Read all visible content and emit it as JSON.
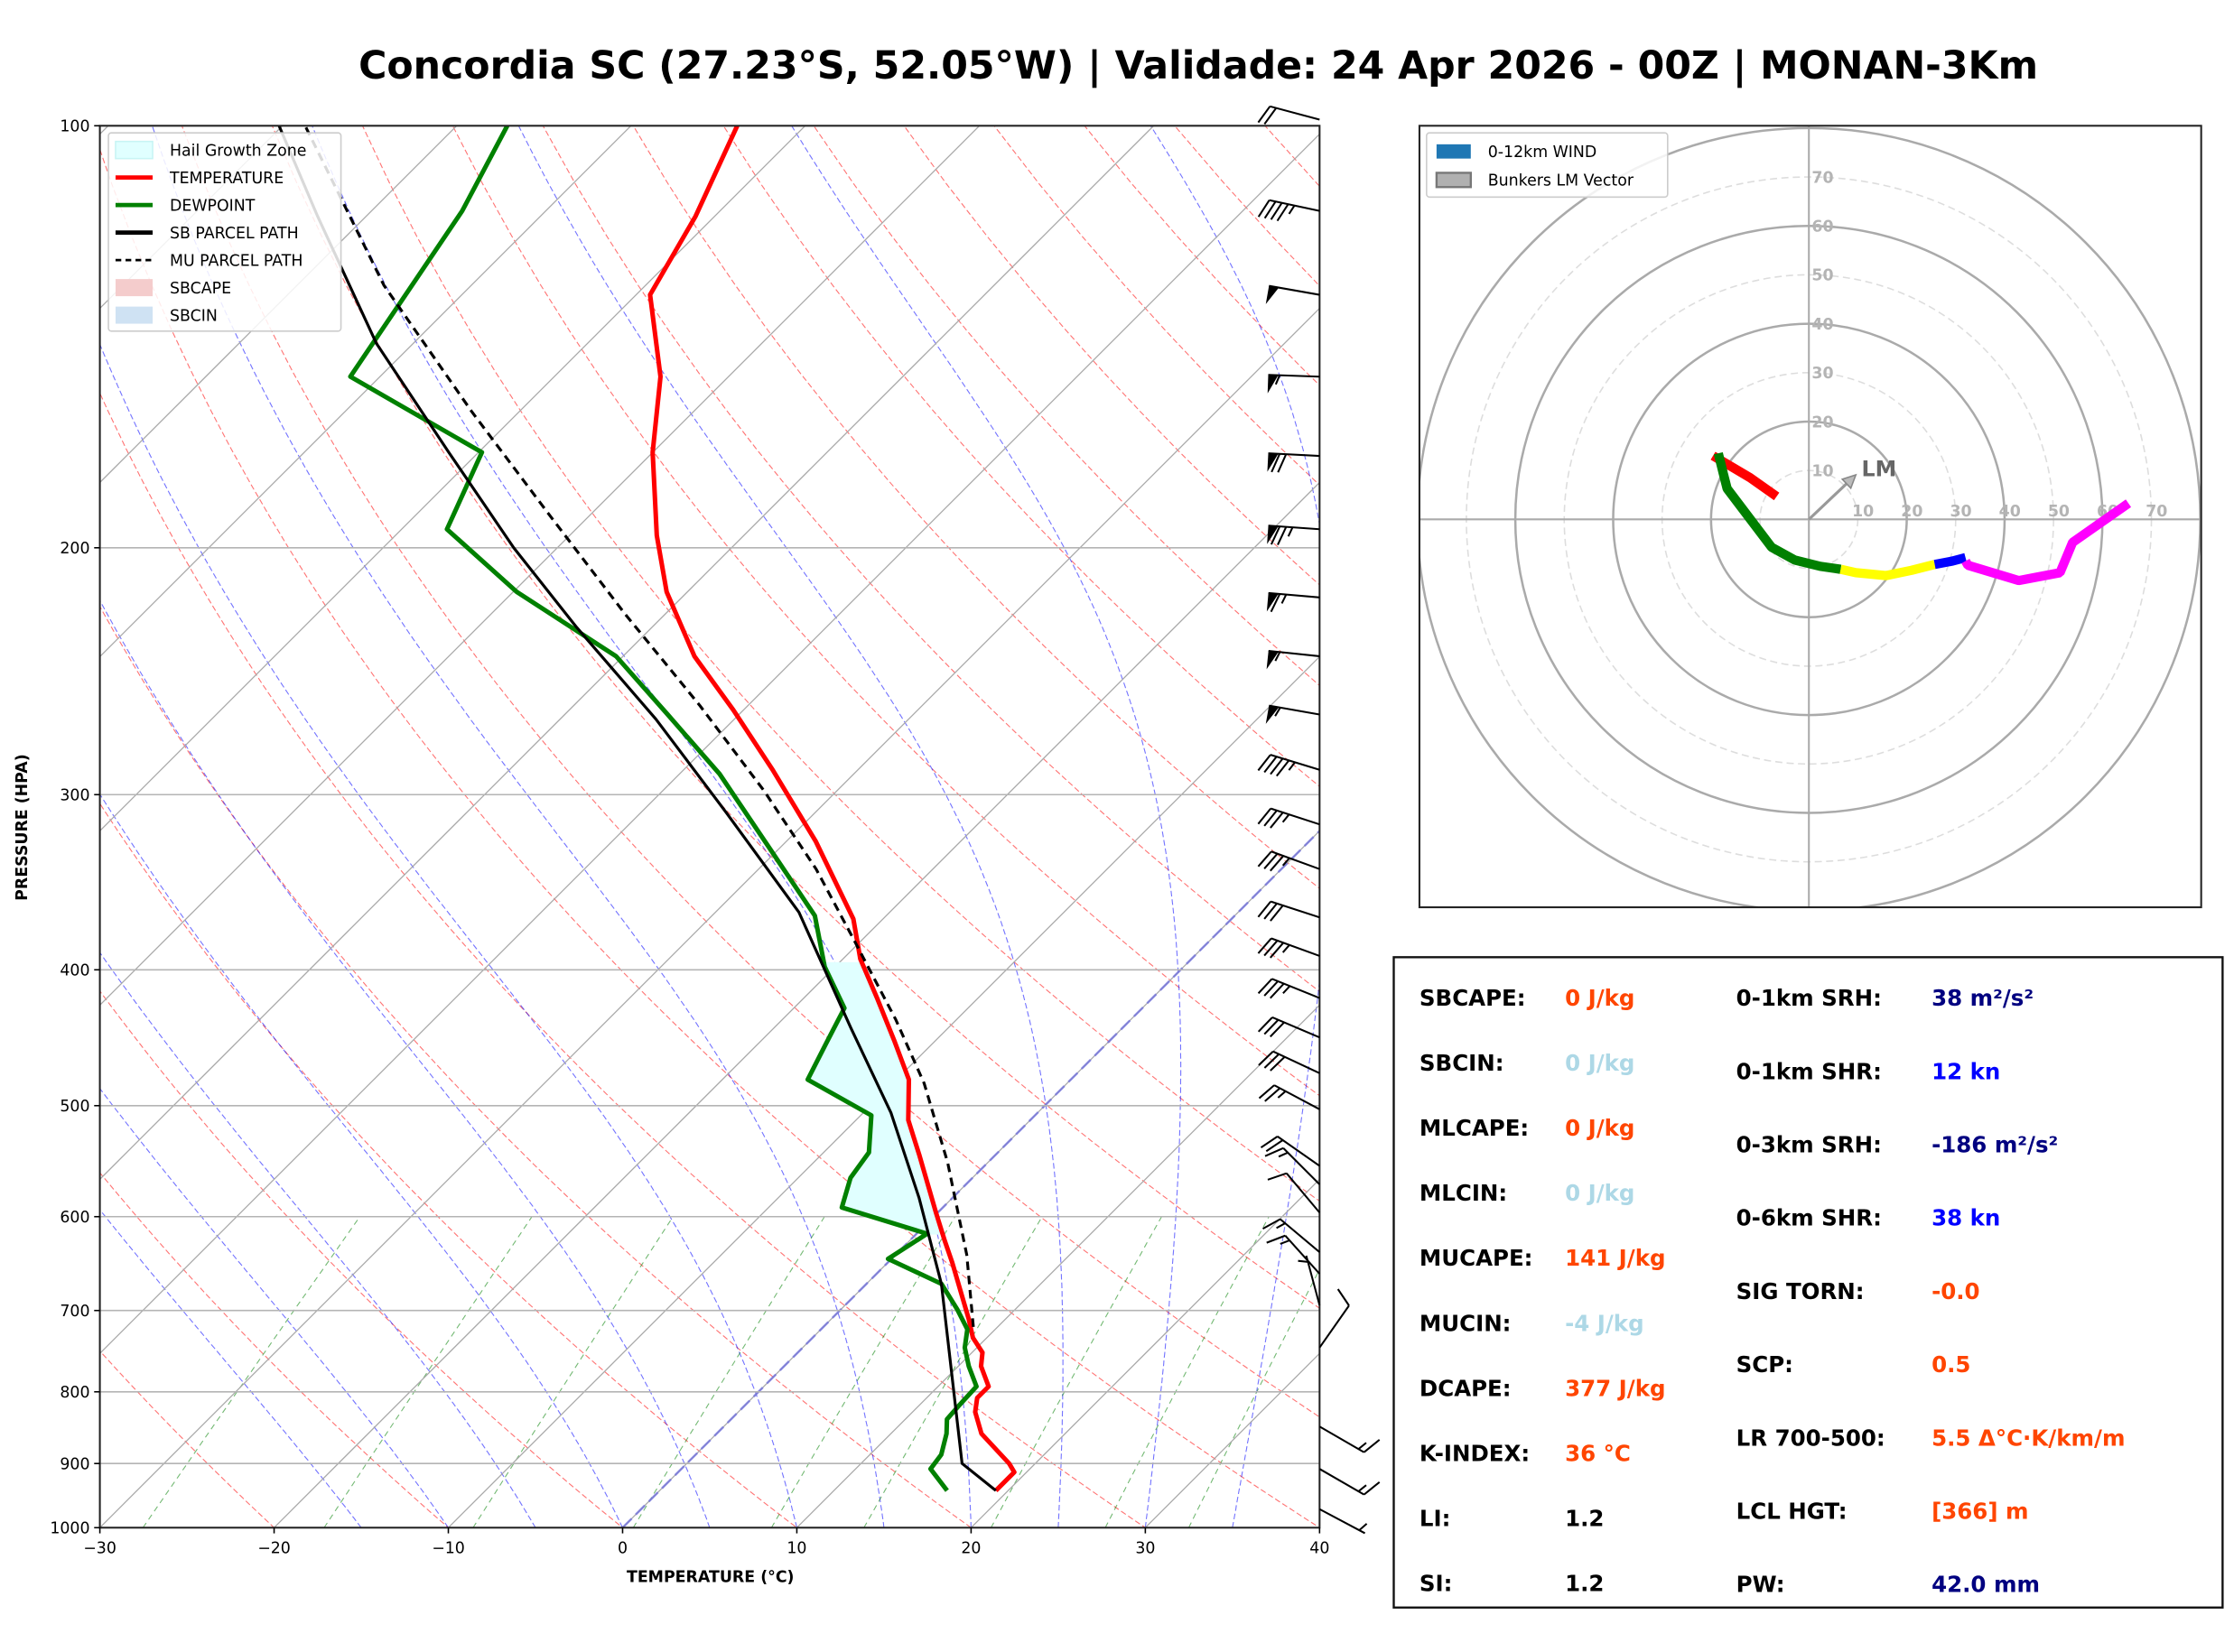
{
  "title": "Concordia SC (27.23°S, 52.05°W) | Validade: 24 Apr 2026 - 00Z | MONAN-3Km",
  "chart_data": [
    {
      "type": "line",
      "subtype": "skew-t log-p",
      "xlabel": "TEMPERATURE (°C)",
      "ylabel": "PRESSURE (HPA)",
      "xlim": [
        -30,
        40
      ],
      "ylim": [
        1000,
        100
      ],
      "y_scale": "log",
      "x_ticks": [
        "−30",
        "−20",
        "−10",
        "0",
        "10",
        "20",
        "30",
        "40"
      ],
      "x_tick_values": [
        -30,
        -20,
        -10,
        0,
        10,
        20,
        30,
        40
      ],
      "y_ticks": [
        "100",
        "200",
        "300",
        "400",
        "500",
        "600",
        "700",
        "800",
        "900",
        "1000"
      ],
      "y_tick_values": [
        100,
        200,
        300,
        400,
        500,
        600,
        700,
        800,
        900,
        1000
      ],
      "grid": true,
      "legend_placement": "top-left",
      "legend": [
        {
          "label": "Hail Growth Zone",
          "kind": "patch",
          "color": "#e0ffff"
        },
        {
          "label": "TEMPERATURE",
          "kind": "line",
          "color": "#ff0000"
        },
        {
          "label": "DEWPOINT",
          "kind": "line",
          "color": "#008000"
        },
        {
          "label": "SB PARCEL PATH",
          "kind": "line",
          "color": "#000000"
        },
        {
          "label": "MU PARCEL PATH",
          "kind": "dash",
          "color": "#000000"
        },
        {
          "label": "SBCAPE",
          "kind": "patch",
          "color": "#f4cccc"
        },
        {
          "label": "SBCIN",
          "kind": "patch",
          "color": "#cfe2f3"
        }
      ],
      "hail_growth_zone": {
        "p_top": 395,
        "p_bottom": 618,
        "color": "#e0ffff"
      },
      "series": [
        {
          "name": "TEMPERATURE",
          "color": "#ff0000",
          "points": [
            [
              19.3,
              941
            ],
            [
              19.3,
              913
            ],
            [
              18.5,
              900
            ],
            [
              15.2,
              857
            ],
            [
              13.6,
              827
            ],
            [
              12.9,
              808
            ],
            [
              12.9,
              793
            ],
            [
              11.3,
              767
            ],
            [
              10.6,
              750
            ],
            [
              9.2,
              732
            ],
            [
              7.9,
              710
            ],
            [
              3.7,
              647
            ],
            [
              2.0,
              624
            ],
            [
              -0.1,
              596
            ],
            [
              -4.3,
              543
            ],
            [
              -7.0,
              512
            ],
            [
              -9.3,
              479
            ],
            [
              -12.3,
              450
            ],
            [
              -15.8,
              419
            ],
            [
              -19.0,
              393
            ],
            [
              -21.7,
              368
            ],
            [
              -28.3,
              324
            ],
            [
              -34.9,
              288
            ],
            [
              -40.6,
              261
            ],
            [
              -45.9,
              239
            ],
            [
              -51.2,
              215
            ],
            [
              -55.0,
              196
            ],
            [
              -60.0,
              171
            ],
            [
              -63.9,
              151
            ],
            [
              -69.2,
              132
            ],
            [
              -71.1,
              116
            ],
            [
              -73.9,
              100
            ]
          ]
        },
        {
          "name": "DEWPOINT",
          "color": "#008000",
          "points": [
            [
              16.5,
              941
            ],
            [
              14.3,
              908
            ],
            [
              14.1,
              887
            ],
            [
              13.2,
              857
            ],
            [
              12.4,
              837
            ],
            [
              12.3,
              818
            ],
            [
              12.2,
              793
            ],
            [
              10.6,
              767
            ],
            [
              9.3,
              744
            ],
            [
              8.4,
              722
            ],
            [
              6.7,
              699
            ],
            [
              4.3,
              670
            ],
            [
              -0.2,
              643
            ],
            [
              0.6,
              617
            ],
            [
              -5.8,
              591
            ],
            [
              -7.0,
              563
            ],
            [
              -7.4,
              540
            ],
            [
              -9.4,
              508
            ],
            [
              -15.1,
              479
            ],
            [
              -16.1,
              452
            ],
            [
              -17.1,
              426
            ],
            [
              -20.6,
              398
            ],
            [
              -24.1,
              366
            ],
            [
              -30.5,
              328
            ],
            [
              -37.7,
              290
            ],
            [
              -44.1,
              263
            ],
            [
              -50.4,
              239
            ],
            [
              -59.8,
              215
            ],
            [
              -67.4,
              194
            ],
            [
              -69.8,
              171
            ],
            [
              -81.7,
              151
            ],
            [
              -84.8,
              115
            ],
            [
              -87.1,
              100
            ]
          ]
        },
        {
          "name": "SB PARCEL PATH",
          "color": "#000000",
          "points": [
            [
              19.3,
              941
            ],
            [
              15.8,
              900
            ],
            [
              11.6,
              808
            ],
            [
              4.3,
              670
            ],
            [
              -1.9,
              582
            ],
            [
              -8.4,
              506
            ],
            [
              -15.6,
              440
            ],
            [
              -25.2,
              364
            ],
            [
              -35.1,
              309
            ],
            [
              -44.5,
              265
            ],
            [
              -54.3,
              228
            ],
            [
              -62.5,
              200
            ],
            [
              -71.7,
              171
            ],
            [
              -82.1,
              143
            ],
            [
              -92.8,
              116
            ],
            [
              -100.2,
              100
            ]
          ]
        },
        {
          "name": "MU PARCEL PATH",
          "color": "#000000",
          "dashed": true,
          "points": [
            [
              8.6,
              719
            ],
            [
              4.1,
              639
            ],
            [
              -2.3,
              549
            ],
            [
              -8.2,
              482
            ],
            [
              -13.5,
              434
            ],
            [
              -20.3,
              382
            ],
            [
              -26.7,
              339
            ],
            [
              -34.2,
              298
            ],
            [
              -42.8,
              259
            ],
            [
              -52.3,
              223
            ],
            [
              -62.5,
              189
            ],
            [
              -72.7,
              160
            ],
            [
              -85.0,
              130
            ],
            [
              -98.7,
              100
            ]
          ]
        }
      ],
      "wind_barbs": [
        {
          "p": 99,
          "dir": 285,
          "kt": 20
        },
        {
          "p": 115,
          "dir": 282,
          "kt": 45
        },
        {
          "p": 132,
          "dir": 280,
          "kt": 50
        },
        {
          "p": 151,
          "dir": 272,
          "kt": 55
        },
        {
          "p": 172,
          "dir": 273,
          "kt": 70
        },
        {
          "p": 194,
          "dir": 274,
          "kt": 75
        },
        {
          "p": 217,
          "dir": 275,
          "kt": 65
        },
        {
          "p": 239,
          "dir": 276,
          "kt": 55
        },
        {
          "p": 263,
          "dir": 280,
          "kt": 55
        },
        {
          "p": 288,
          "dir": 287,
          "kt": 45
        },
        {
          "p": 315,
          "dir": 288,
          "kt": 35
        },
        {
          "p": 339,
          "dir": 290,
          "kt": 35
        },
        {
          "p": 367,
          "dir": 288,
          "kt": 30
        },
        {
          "p": 391,
          "dir": 290,
          "kt": 35
        },
        {
          "p": 419,
          "dir": 292,
          "kt": 35
        },
        {
          "p": 447,
          "dir": 293,
          "kt": 30
        },
        {
          "p": 474,
          "dir": 295,
          "kt": 30
        },
        {
          "p": 503,
          "dir": 298,
          "kt": 25
        },
        {
          "p": 552,
          "dir": 305,
          "kt": 20
        },
        {
          "p": 569,
          "dir": 315,
          "kt": 15
        },
        {
          "p": 596,
          "dir": 320,
          "kt": 10
        },
        {
          "p": 636,
          "dir": 310,
          "kt": 15
        },
        {
          "p": 659,
          "dir": 318,
          "kt": 15
        },
        {
          "p": 694,
          "dir": 345,
          "kt": 5
        },
        {
          "p": 744,
          "dir": 35,
          "kt": 10
        },
        {
          "p": 847,
          "dir": 120,
          "kt": 15
        },
        {
          "p": 908,
          "dir": 120,
          "kt": 15
        },
        {
          "p": 970,
          "dir": 118,
          "kt": 5
        }
      ]
    },
    {
      "type": "line",
      "subtype": "hodograph",
      "units": "kt",
      "rings": [
        10,
        20,
        30,
        40,
        50,
        60,
        70,
        80
      ],
      "ring_labels": [
        "10",
        "20",
        "30",
        "40",
        "50",
        "60",
        "70"
      ],
      "legend_placement": "top-left",
      "legend": [
        {
          "label": "0-12km WIND",
          "color": "#1f77b4"
        },
        {
          "label": "Bunkers LM Vector",
          "color": "#b0b0b0"
        }
      ],
      "segments": [
        {
          "color": "#ff0000",
          "points": [
            [
              -6.6,
              4.7
            ],
            [
              -12.0,
              8.5
            ],
            [
              -19.6,
              13.0
            ]
          ]
        },
        {
          "color": "#008000",
          "points": [
            [
              -18.5,
              13.5
            ],
            [
              -17.5,
              9.4
            ],
            [
              -16.7,
              6.3
            ],
            [
              -7.6,
              -5.7
            ],
            [
              -2.9,
              -8.3
            ],
            [
              2.3,
              -9.6
            ],
            [
              6.5,
              -10.2
            ]
          ]
        },
        {
          "color": "#ffff00",
          "points": [
            [
              6.5,
              -10.2
            ],
            [
              9.6,
              -10.9
            ],
            [
              15.8,
              -11.5
            ],
            [
              21.0,
              -10.4
            ],
            [
              25.7,
              -9.2
            ]
          ]
        },
        {
          "color": "#0000ff",
          "points": [
            [
              25.7,
              -9.2
            ],
            [
              29.4,
              -8.5
            ],
            [
              32.0,
              -7.8
            ]
          ]
        },
        {
          "color": "#ff00ff",
          "points": [
            [
              32.0,
              -8.5
            ],
            [
              32.5,
              -9.4
            ],
            [
              42.9,
              -12.5
            ],
            [
              51.3,
              -10.9
            ],
            [
              53.9,
              -4.7
            ],
            [
              65.3,
              3.3
            ]
          ]
        }
      ],
      "lm_vector": {
        "label": "LM",
        "u": 9.6,
        "v": 9.1
      }
    }
  ],
  "stats": {
    "left": [
      {
        "label": "SBCAPE:",
        "value": "0 J/kg",
        "color": "#ff4500"
      },
      {
        "label": "SBCIN:",
        "value": "0 J/kg",
        "color": "#add8e6"
      },
      {
        "label": "MLCAPE:",
        "value": "0 J/kg",
        "color": "#ff4500"
      },
      {
        "label": "MLCIN:",
        "value": "0 J/kg",
        "color": "#add8e6"
      },
      {
        "label": "MUCAPE:",
        "value": "141 J/kg",
        "color": "#ff4500"
      },
      {
        "label": "MUCIN:",
        "value": "-4 J/kg",
        "color": "#add8e6"
      },
      {
        "label": "DCAPE:",
        "value": "377 J/kg",
        "color": "#ff4500"
      },
      {
        "label": "K-INDEX:",
        "value": "36 °C",
        "color": "#ff4500"
      },
      {
        "label": "LI:",
        "value": "1.2",
        "color": "#000000"
      },
      {
        "label": "SI:",
        "value": "1.2",
        "color": "#000000"
      }
    ],
    "right": [
      {
        "label": "0-1km SRH:",
        "value": "38 m²/s²",
        "color": "#000080"
      },
      {
        "label": "0-1km SHR:",
        "value": "12 kn",
        "color": "#0000ff"
      },
      {
        "label": "0-3km SRH:",
        "value": "-186 m²/s²",
        "color": "#000080"
      },
      {
        "label": "0-6km SHR:",
        "value": "38 kn",
        "color": "#0000ff"
      },
      {
        "label": "SIG TORN:",
        "value": "-0.0",
        "color": "#ff4500"
      },
      {
        "label": "SCP:",
        "value": "0.5",
        "color": "#ff4500"
      },
      {
        "label": "LR 700-500:",
        "value": "5.5 Δ°C·K/km/m",
        "color": "#ff4500"
      },
      {
        "label": "LCL HGT:",
        "value": "[366] m",
        "color": "#ff4500"
      },
      {
        "label": "PW:",
        "value": "42.0 mm",
        "color": "#000080"
      }
    ]
  }
}
